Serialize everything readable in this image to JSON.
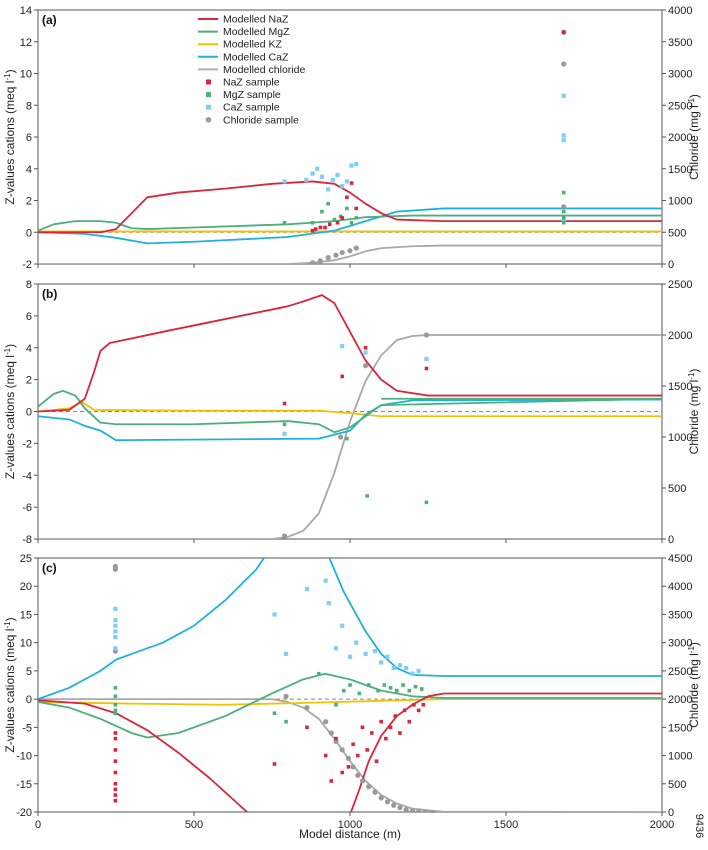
{
  "figure": {
    "xlabel": "Model distance (m)",
    "id_code": "9436",
    "colors": {
      "NaZ": "#d7263d",
      "MgZ": "#4bb07a",
      "KZ": "#f2c200",
      "CaZ": "#20b0e0",
      "CaZ_sample": "#7fcff0",
      "chloride": "#a8a8a8",
      "chloride_sample": "#9a9a9a",
      "legend_chloride": "#b4a6d8"
    },
    "legend": {
      "entries": [
        {
          "key": "NaZ",
          "label": "Modelled NaZ",
          "kind": "line"
        },
        {
          "key": "MgZ",
          "label": "Modelled MgZ",
          "kind": "line"
        },
        {
          "key": "KZ",
          "label": "Modelled KZ",
          "kind": "line"
        },
        {
          "key": "CaZ",
          "label": "Modelled CaZ",
          "kind": "line"
        },
        {
          "key": "legend_chloride",
          "label": "Modelled chloride",
          "kind": "line"
        },
        {
          "key": "NaZ",
          "label": "NaZ sample",
          "kind": "square"
        },
        {
          "key": "MgZ",
          "label": "MgZ sample",
          "kind": "square"
        },
        {
          "key": "CaZ_sample",
          "label": "CaZ sample",
          "kind": "square"
        },
        {
          "key": "chloride_sample",
          "label": "Chloride sample",
          "kind": "circle"
        }
      ]
    }
  },
  "chart_data": [
    {
      "type": "line",
      "panel_label": "(a)",
      "xlabel": "",
      "ylabel": "Z-values cations (meq l-1)",
      "y2label": "Chloride (mg l-1)",
      "xlim": [
        0,
        2000
      ],
      "ylim": [
        -2,
        14
      ],
      "y2lim": [
        0,
        4000
      ],
      "xticks": [
        0,
        500,
        1000,
        1500,
        2000
      ],
      "yticks": [
        -2,
        0,
        2,
        4,
        6,
        8,
        10,
        12,
        14
      ],
      "y2ticks": [
        0,
        500,
        1000,
        1500,
        2000,
        2500,
        3000,
        3500,
        4000
      ],
      "x_tick_labels": false,
      "series": [
        {
          "key": "NaZ",
          "x": [
            0,
            200,
            250,
            300,
            350,
            450,
            600,
            750,
            880,
            950,
            1000,
            1050,
            1100,
            1150,
            1300,
            2000
          ],
          "y": [
            0,
            0,
            0.2,
            1.2,
            2.2,
            2.5,
            2.75,
            3.05,
            3.2,
            3.05,
            2.5,
            1.8,
            1.2,
            0.8,
            0.7,
            0.7
          ]
        },
        {
          "key": "MgZ",
          "x": [
            0,
            50,
            120,
            200,
            250,
            300,
            350,
            500,
            800,
            950,
            1050,
            1200,
            2000
          ],
          "y": [
            0.1,
            0.5,
            0.7,
            0.7,
            0.6,
            0.25,
            0.2,
            0.3,
            0.5,
            0.7,
            0.95,
            1.05,
            1.05
          ]
        },
        {
          "key": "KZ",
          "x": [
            0,
            2000
          ],
          "y": [
            0.05,
            0.05
          ]
        },
        {
          "key": "CaZ",
          "x": [
            0,
            150,
            250,
            350,
            500,
            800,
            950,
            1050,
            1150,
            1300,
            2000
          ],
          "y": [
            0,
            -0.1,
            -0.35,
            -0.7,
            -0.6,
            -0.3,
            0.1,
            0.7,
            1.3,
            1.5,
            1.5
          ]
        }
      ],
      "chloride_series": {
        "x": [
          0,
          800,
          880,
          950,
          1000,
          1050,
          1100,
          1200,
          1300,
          2000
        ],
        "y": [
          0,
          0,
          20,
          60,
          120,
          200,
          250,
          280,
          290,
          290
        ]
      },
      "samples": {
        "NaZ": {
          "x": [
            880,
            890,
            905,
            920,
            935,
            960,
            975,
            990,
            1005,
            1020,
            1685
          ],
          "y": [
            0.1,
            0.2,
            0.3,
            0.3,
            0.5,
            0.6,
            0.9,
            2.2,
            3.1,
            1.5,
            12.6
          ]
        },
        "MgZ": {
          "x": [
            790,
            880,
            910,
            930,
            950,
            970,
            990,
            1005,
            1020,
            1685,
            1685,
            1685,
            1685
          ],
          "y": [
            0.6,
            0.6,
            1.3,
            1.8,
            0.8,
            1.0,
            1.5,
            0.6,
            0.9,
            2.5,
            1.3,
            0.9,
            0.6
          ]
        },
        "CaZ_sample": {
          "x": [
            790,
            860,
            880,
            895,
            910,
            930,
            945,
            960,
            975,
            990,
            1005,
            1020,
            1685,
            1685,
            1685,
            1685
          ],
          "y": [
            3.2,
            3.3,
            3.7,
            4.0,
            3.5,
            2.7,
            3.3,
            3.6,
            2.9,
            3.2,
            4.2,
            4.3,
            8.6,
            6.1,
            5.8,
            0.8
          ]
        },
        "chloride_sample": {
          "x": [
            880,
            905,
            930,
            955,
            975,
            1000,
            1020,
            1685,
            1685,
            1685
          ],
          "y": [
            20,
            50,
            100,
            140,
            180,
            210,
            250,
            3650,
            3150,
            900
          ]
        }
      }
    },
    {
      "type": "line",
      "panel_label": "(b)",
      "xlabel": "",
      "ylabel": "Z-values cations (meq l-1)",
      "y2label": "Chloride (mg l-1)",
      "xlim": [
        0,
        2000
      ],
      "ylim": [
        -8,
        8
      ],
      "y2lim": [
        0,
        2500
      ],
      "xticks": [
        0,
        500,
        1000,
        1500,
        2000
      ],
      "yticks": [
        -8,
        -6,
        -4,
        -2,
        0,
        2,
        4,
        6,
        8
      ],
      "y2ticks": [
        0,
        500,
        1000,
        1500,
        2000,
        2500
      ],
      "x_tick_labels": false,
      "series": [
        {
          "key": "NaZ",
          "x": [
            0,
            100,
            150,
            180,
            200,
            230,
            280,
            400,
            600,
            800,
            850,
            910,
            950,
            1000,
            1050,
            1100,
            1150,
            1250,
            2000
          ],
          "y": [
            0,
            0.1,
            0.8,
            2.5,
            3.8,
            4.3,
            4.5,
            5.0,
            5.8,
            6.6,
            6.9,
            7.3,
            6.8,
            5.0,
            3.2,
            2.0,
            1.3,
            1.0,
            1.0
          ]
        },
        {
          "key": "MgZ",
          "x": [
            0,
            50,
            80,
            120,
            150,
            200,
            250,
            500,
            800,
            900,
            950,
            1000,
            1050,
            1100,
            2000
          ],
          "y": [
            0.3,
            1.1,
            1.3,
            1.0,
            0.2,
            -0.7,
            -0.8,
            -0.8,
            -0.6,
            -0.8,
            -1.3,
            -1.0,
            -0.3,
            0.4,
            0.8
          ]
        },
        {
          "key": "KZ",
          "x": [
            0,
            100,
            120,
            140,
            180,
            500,
            900,
            1000,
            1100,
            2000
          ],
          "y": [
            0,
            0.2,
            0.4,
            0.6,
            0.1,
            0.05,
            0.05,
            -0.1,
            -0.3,
            -0.3
          ]
        },
        {
          "key": "CaZ",
          "x": [
            0,
            100,
            150,
            200,
            250,
            600,
            900,
            1000,
            1050,
            1100,
            1200,
            2000
          ],
          "y": [
            -0.3,
            -0.5,
            -0.9,
            -1.2,
            -1.8,
            -1.75,
            -1.7,
            -1.2,
            -0.2,
            0.4,
            0.7,
            0.75
          ]
        },
        {
          "key": "MgZ",
          "x": [
            1100,
            2000
          ],
          "y": [
            0.8,
            0.8
          ]
        }
      ],
      "chloride_series": {
        "x": [
          0,
          750,
          800,
          850,
          900,
          950,
          1000,
          1050,
          1100,
          1150,
          1200,
          1250,
          1300,
          2000
        ],
        "y": [
          0,
          0,
          20,
          80,
          250,
          650,
          1150,
          1550,
          1800,
          1950,
          1990,
          2000,
          2000,
          2000
        ]
      },
      "samples": {
        "NaZ": {
          "x": [
            790,
            975,
            1050,
            1245
          ],
          "y": [
            0.5,
            2.2,
            4.0,
            2.7
          ]
        },
        "MgZ": {
          "x": [
            790,
            990,
            1055,
            1245
          ],
          "y": [
            -0.8,
            -1.7,
            -5.3,
            -5.7
          ]
        },
        "CaZ_sample": {
          "x": [
            790,
            975,
            1050,
            1245
          ],
          "y": [
            -1.4,
            4.1,
            3.7,
            3.3
          ]
        },
        "chloride_sample": {
          "x": [
            790,
            970,
            1050,
            1245
          ],
          "y": [
            30,
            1000,
            1700,
            2000
          ]
        }
      }
    },
    {
      "type": "line",
      "panel_label": "(c)",
      "xlabel": "Model distance (m)",
      "ylabel": "Z-values cations (meq l-1)",
      "y2label": "Chloride (mg l-1)",
      "xlim": [
        0,
        2000
      ],
      "ylim": [
        -20,
        25
      ],
      "y2lim": [
        0,
        4500
      ],
      "xticks": [
        0,
        500,
        1000,
        1500,
        2000
      ],
      "yticks": [
        -20,
        -15,
        -10,
        -5,
        0,
        5,
        10,
        15,
        20,
        25
      ],
      "y2ticks": [
        0,
        500,
        1000,
        1500,
        2000,
        2500,
        3000,
        3500,
        4000,
        4500
      ],
      "x_tick_labels": true,
      "series": [
        {
          "key": "NaZ",
          "x": [
            0,
            150,
            250,
            350,
            450,
            550,
            650,
            680
          ],
          "y": [
            -0.2,
            -0.8,
            -2.5,
            -5.5,
            -9.5,
            -14.0,
            -19.0,
            -20.5
          ]
        },
        {
          "key": "NaZ",
          "x": [
            1000,
            1030,
            1060,
            1100,
            1150,
            1200,
            1250,
            1300,
            2000
          ],
          "y": [
            -20.5,
            -16.0,
            -11.0,
            -6.5,
            -3.0,
            -1.0,
            0.5,
            1.0,
            1.0
          ]
        },
        {
          "key": "MgZ",
          "x": [
            0,
            100,
            200,
            300,
            350,
            450,
            600,
            750,
            850,
            920,
            1000,
            1100,
            1200,
            1300,
            2000
          ],
          "y": [
            -0.5,
            -1.5,
            -3.5,
            -6.0,
            -6.8,
            -6.0,
            -3.0,
            1.0,
            3.5,
            4.5,
            3.5,
            1.5,
            0.5,
            0.2,
            0.2
          ]
        },
        {
          "key": "KZ",
          "x": [
            0,
            300,
            600,
            900,
            1100,
            1300,
            2000
          ],
          "y": [
            -0.5,
            -0.8,
            -1.0,
            -0.6,
            -0.3,
            0,
            0
          ]
        },
        {
          "key": "CaZ",
          "x": [
            0,
            100,
            200,
            250,
            300,
            400,
            500,
            600,
            700,
            730
          ],
          "y": [
            0,
            2.0,
            5.0,
            7.0,
            8.0,
            10.0,
            13.0,
            17.5,
            23.0,
            25.5
          ]
        },
        {
          "key": "CaZ",
          "x": [
            930,
            980,
            1050,
            1100,
            1150,
            1200,
            1300,
            2000
          ],
          "y": [
            25.5,
            19.0,
            12.0,
            8.0,
            5.5,
            4.3,
            4.1,
            4.1
          ]
        }
      ],
      "chloride_series": {
        "x": [
          0,
          750,
          800,
          850,
          900,
          950,
          1000,
          1050,
          1100,
          1150,
          1200,
          1300,
          2000
        ],
        "y": [
          2000,
          2000,
          1950,
          1850,
          1650,
          1300,
          900,
          550,
          300,
          150,
          60,
          5,
          0
        ]
      },
      "samples": {
        "NaZ": {
          "x": [
            248,
            248,
            248,
            248,
            248,
            248,
            248,
            248,
            248,
            758,
            862,
            922,
            940,
            955,
            975,
            995,
            1010,
            1025,
            1040,
            1055,
            1070,
            1085,
            1100,
            1115,
            1130,
            1145,
            1160,
            1175,
            1190,
            1205,
            1220,
            1235
          ],
          "y": [
            -6,
            -7,
            -9,
            -11,
            -13,
            -15,
            -16,
            -17,
            -18,
            -11.5,
            -5,
            -10,
            -14.5,
            -7,
            -13,
            -12,
            -8,
            -10,
            -5,
            -9,
            -6,
            -11,
            -4,
            -7,
            -5,
            -3,
            -6,
            -2,
            -4,
            -1,
            -2,
            -1
          ]
        },
        "MgZ": {
          "x": [
            248,
            248,
            248,
            248,
            248,
            758,
            795,
            900,
            955,
            980,
            1000,
            1030,
            1060,
            1090,
            1110,
            1130,
            1150,
            1170,
            1190,
            1210,
            1230
          ],
          "y": [
            2,
            0.5,
            -1,
            -2,
            -2.5,
            -2.5,
            -4,
            4.5,
            -1,
            1.5,
            2.5,
            1,
            2.5,
            1.5,
            2.5,
            2,
            1.5,
            2.5,
            1.5,
            2.2,
            1.8
          ]
        },
        "CaZ_sample": {
          "x": [
            248,
            248,
            248,
            248,
            248,
            248,
            758,
            795,
            862,
            922,
            932,
            955,
            975,
            1000,
            1020,
            1050,
            1080,
            1100,
            1120,
            1140,
            1160,
            1180,
            1200,
            1220
          ],
          "y": [
            16,
            14,
            13,
            12,
            11,
            9,
            15,
            8,
            19.5,
            21,
            17,
            9,
            13,
            7.5,
            10,
            8,
            8.5,
            6.5,
            7.5,
            5.5,
            6,
            5.5,
            4.5,
            5
          ]
        },
        "chloride_sample": {
          "x": [
            248,
            248,
            248,
            795,
            862,
            922,
            940,
            955,
            975,
            995,
            1010,
            1025,
            1040,
            1060,
            1080,
            1100,
            1120,
            1140,
            1160,
            1180,
            1200,
            1220,
            1240
          ],
          "y": [
            4350,
            4300,
            2850,
            2050,
            1850,
            1600,
            1400,
            1250,
            1100,
            950,
            800,
            650,
            550,
            450,
            350,
            250,
            180,
            120,
            80,
            40,
            20,
            10,
            0
          ]
        }
      }
    }
  ]
}
